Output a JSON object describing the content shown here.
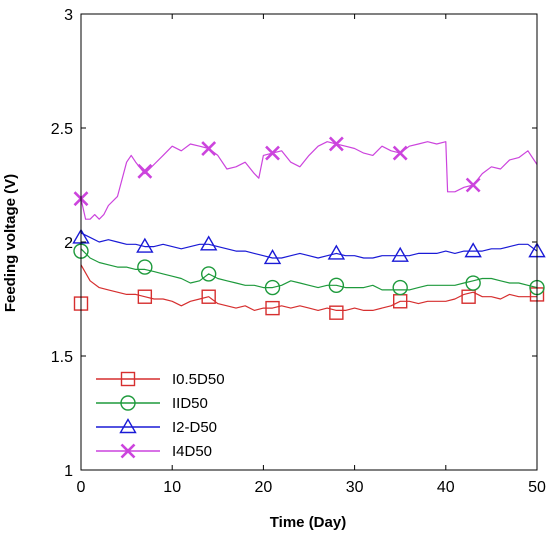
{
  "chart_data": {
    "type": "line",
    "xlabel": "Time (Day)",
    "ylabel": "Feeding voltage (V)",
    "xlim": [
      0,
      50
    ],
    "ylim": [
      1,
      3
    ],
    "xticks": [
      0,
      10,
      20,
      30,
      40,
      50
    ],
    "yticks": [
      1,
      1.5,
      2,
      2.5,
      3
    ],
    "ytick_labels": [
      "1",
      "1.5",
      "2",
      "2.5",
      "3"
    ],
    "grid": false,
    "legend_position": "bottom-left",
    "series": [
      {
        "name": "I0.5D50",
        "color": "#d62f2f",
        "marker": "square",
        "x": [
          0,
          1,
          2,
          3,
          4,
          5,
          6,
          7,
          8,
          9,
          10,
          11,
          12,
          13,
          14,
          15,
          16,
          17,
          18,
          19,
          20,
          21,
          22,
          23,
          24,
          25,
          26,
          27,
          28,
          29,
          30,
          31,
          32,
          33,
          34,
          35,
          36,
          37,
          38,
          39,
          40,
          41,
          42,
          43,
          44,
          45,
          46,
          47,
          48,
          49,
          50
        ],
        "y": [
          1.9,
          1.83,
          1.8,
          1.79,
          1.78,
          1.77,
          1.77,
          1.76,
          1.75,
          1.75,
          1.74,
          1.72,
          1.74,
          1.75,
          1.76,
          1.73,
          1.72,
          1.71,
          1.72,
          1.7,
          1.71,
          1.71,
          1.72,
          1.71,
          1.72,
          1.71,
          1.7,
          1.71,
          1.7,
          1.7,
          1.71,
          1.7,
          1.7,
          1.71,
          1.72,
          1.74,
          1.74,
          1.73,
          1.74,
          1.74,
          1.74,
          1.75,
          1.77,
          1.78,
          1.76,
          1.76,
          1.75,
          1.77,
          1.76,
          1.76,
          1.76
        ],
        "marker_x": [
          0,
          7,
          14,
          21,
          28,
          35,
          42.5,
          50
        ],
        "marker_y": [
          1.73,
          1.76,
          1.76,
          1.71,
          1.69,
          1.74,
          1.76,
          1.77
        ]
      },
      {
        "name": "IID50",
        "color": "#1e9a3c",
        "marker": "circle",
        "x": [
          0,
          1,
          2,
          3,
          4,
          5,
          6,
          7,
          8,
          9,
          10,
          11,
          12,
          13,
          14,
          15,
          16,
          17,
          18,
          19,
          20,
          21,
          22,
          23,
          24,
          25,
          26,
          27,
          28,
          29,
          30,
          31,
          32,
          33,
          34,
          35,
          36,
          37,
          38,
          39,
          40,
          41,
          42,
          43,
          44,
          45,
          46,
          47,
          48,
          49,
          50
        ],
        "y": [
          1.97,
          1.93,
          1.91,
          1.9,
          1.89,
          1.89,
          1.88,
          1.88,
          1.87,
          1.86,
          1.85,
          1.84,
          1.82,
          1.83,
          1.86,
          1.84,
          1.83,
          1.82,
          1.81,
          1.81,
          1.8,
          1.8,
          1.81,
          1.83,
          1.82,
          1.81,
          1.8,
          1.81,
          1.81,
          1.8,
          1.8,
          1.8,
          1.81,
          1.79,
          1.79,
          1.79,
          1.79,
          1.8,
          1.81,
          1.81,
          1.81,
          1.81,
          1.82,
          1.83,
          1.84,
          1.84,
          1.83,
          1.82,
          1.82,
          1.81,
          1.8
        ],
        "marker_x": [
          0,
          7,
          14,
          21,
          28,
          35,
          43,
          50
        ],
        "marker_y": [
          1.96,
          1.89,
          1.86,
          1.8,
          1.81,
          1.8,
          1.82,
          1.8
        ]
      },
      {
        "name": "I2-D50",
        "color": "#1a1ad6",
        "marker": "triangle",
        "x": [
          0,
          1,
          2,
          3,
          4,
          5,
          6,
          7,
          8,
          9,
          10,
          11,
          12,
          13,
          14,
          15,
          16,
          17,
          18,
          19,
          20,
          21,
          22,
          23,
          24,
          25,
          26,
          27,
          28,
          29,
          30,
          31,
          32,
          33,
          34,
          35,
          36,
          37,
          38,
          39,
          40,
          41,
          42,
          43,
          44,
          45,
          46,
          47,
          48,
          49,
          50
        ],
        "y": [
          2.04,
          2.02,
          2.0,
          2.01,
          2.0,
          1.99,
          1.99,
          1.98,
          1.98,
          1.99,
          1.98,
          1.97,
          1.98,
          1.99,
          1.99,
          1.98,
          1.97,
          1.96,
          1.96,
          1.95,
          1.94,
          1.93,
          1.93,
          1.94,
          1.95,
          1.94,
          1.93,
          1.94,
          1.95,
          1.94,
          1.94,
          1.93,
          1.93,
          1.94,
          1.94,
          1.94,
          1.94,
          1.95,
          1.95,
          1.95,
          1.96,
          1.95,
          1.96,
          1.96,
          1.96,
          1.97,
          1.97,
          1.98,
          1.99,
          1.99,
          1.96
        ],
        "marker_x": [
          0,
          7,
          14,
          21,
          28,
          35,
          43,
          50
        ],
        "marker_y": [
          2.02,
          1.98,
          1.99,
          1.93,
          1.95,
          1.94,
          1.96,
          1.96
        ]
      },
      {
        "name": "I4D50",
        "color": "#cc44dd",
        "marker": "x",
        "x": [
          0,
          0.5,
          1,
          1.5,
          2,
          2.5,
          3,
          4,
          5,
          5.5,
          6,
          7,
          8,
          9,
          10,
          11,
          12,
          13,
          14,
          15,
          16,
          17,
          18,
          19,
          19.5,
          20,
          21,
          22,
          23,
          24,
          25,
          26,
          27,
          28,
          29,
          30,
          31,
          32,
          33,
          34,
          35,
          36,
          37,
          38,
          39,
          40,
          40.2,
          41,
          42,
          43,
          44,
          45,
          46,
          47,
          48,
          49,
          50
        ],
        "y": [
          2.19,
          2.1,
          2.1,
          2.12,
          2.1,
          2.12,
          2.16,
          2.2,
          2.35,
          2.38,
          2.35,
          2.3,
          2.34,
          2.38,
          2.42,
          2.4,
          2.43,
          2.42,
          2.41,
          2.38,
          2.32,
          2.33,
          2.35,
          2.3,
          2.28,
          2.38,
          2.39,
          2.4,
          2.35,
          2.33,
          2.38,
          2.42,
          2.44,
          2.43,
          2.42,
          2.41,
          2.39,
          2.38,
          2.42,
          2.4,
          2.39,
          2.42,
          2.43,
          2.44,
          2.43,
          2.44,
          2.22,
          2.22,
          2.24,
          2.25,
          2.3,
          2.33,
          2.32,
          2.36,
          2.37,
          2.4,
          2.34
        ],
        "marker_x": [
          0,
          7,
          14,
          21,
          28,
          35,
          43
        ],
        "marker_y": [
          2.19,
          2.31,
          2.41,
          2.39,
          2.43,
          2.39,
          2.25
        ]
      }
    ]
  }
}
